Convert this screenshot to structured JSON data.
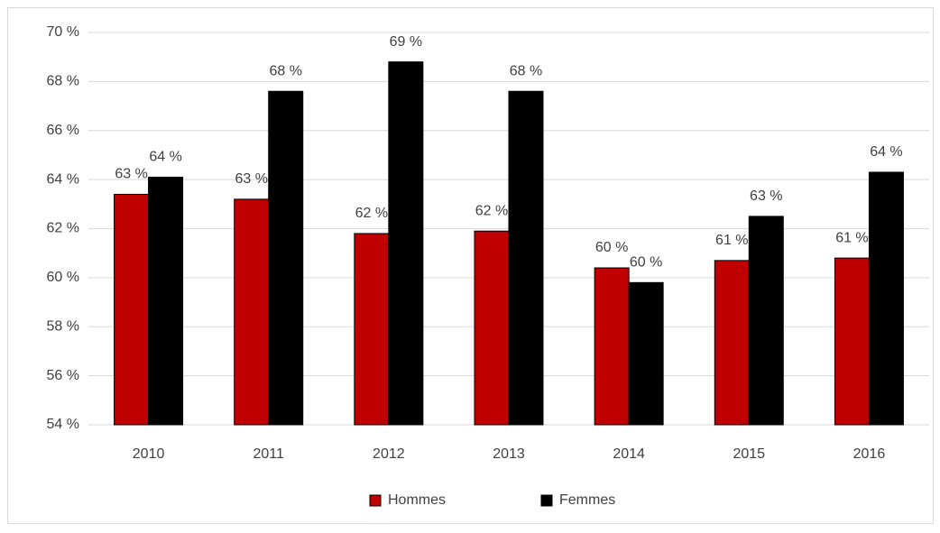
{
  "chart_data": {
    "type": "bar",
    "categories": [
      "2010",
      "2011",
      "2012",
      "2013",
      "2014",
      "2015",
      "2016"
    ],
    "series": [
      {
        "name": "Hommes",
        "color": "#c00000",
        "values": [
          63.4,
          63.2,
          61.8,
          61.9,
          60.4,
          60.7,
          60.8
        ],
        "value_labels": [
          "63 %",
          "63 %",
          "62 %",
          "62 %",
          "60 %",
          "61 %",
          "61 %"
        ]
      },
      {
        "name": "Femmes",
        "color": "#000000",
        "values": [
          64.1,
          67.6,
          68.8,
          67.6,
          59.8,
          62.5,
          64.3
        ],
        "value_labels": [
          "64 %",
          "68 %",
          "69 %",
          "68 %",
          "60 %",
          "63 %",
          "64 %"
        ]
      }
    ],
    "ylim": [
      54,
      70
    ],
    "yticks": [
      {
        "value": 54,
        "label": "54 %"
      },
      {
        "value": 56,
        "label": "56 %"
      },
      {
        "value": 58,
        "label": "58 %"
      },
      {
        "value": 60,
        "label": "60 %"
      },
      {
        "value": 62,
        "label": "62 %"
      },
      {
        "value": 64,
        "label": "64 %"
      },
      {
        "value": 66,
        "label": "66 %"
      },
      {
        "value": 68,
        "label": "68 %"
      },
      {
        "value": 70,
        "label": "70 %"
      }
    ],
    "grid": true,
    "legend": "bottom"
  }
}
